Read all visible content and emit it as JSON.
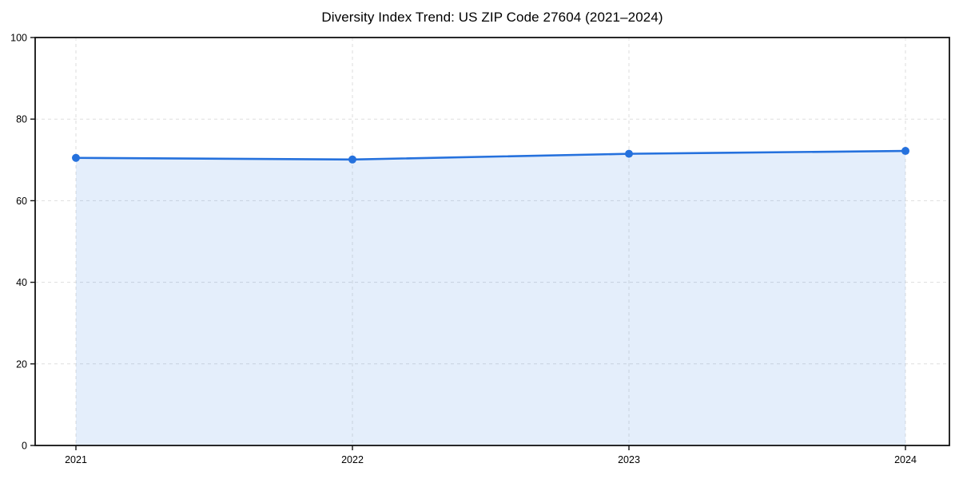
{
  "chart_data": {
    "type": "area",
    "title": "Diversity Index Trend: US ZIP Code 27604 (2021–2024)",
    "categories": [
      "2021",
      "2022",
      "2023",
      "2024"
    ],
    "series": [
      {
        "name": "Diversity Index",
        "values": [
          70.5,
          70.1,
          71.5,
          72.2
        ]
      }
    ],
    "xlabel": "",
    "ylabel": "",
    "ylim": [
      0,
      100
    ],
    "yticks": [
      0,
      20,
      40,
      60,
      80,
      100
    ],
    "grid": true,
    "legend": false,
    "marker": "circle",
    "colors": {
      "line": "#2571dd",
      "marker": "#2571dd",
      "fill": "#e7effc",
      "fill_rgba": "rgba(37,113,221,0.12)",
      "gridline": "#dedede",
      "frame": "#111111",
      "text": "#000000",
      "background": "#ffffff"
    }
  }
}
